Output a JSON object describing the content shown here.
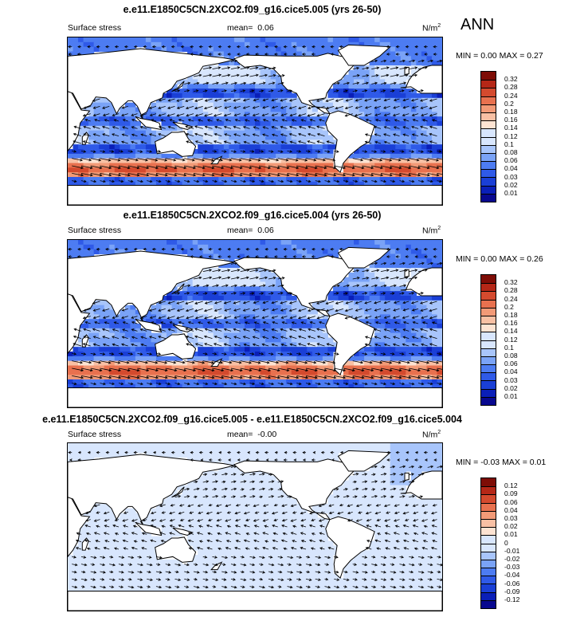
{
  "season": "ANN",
  "colors": {
    "land": "#ffffff",
    "coast": "#000000",
    "abs_scale": [
      "#08088f",
      "#0a1fb8",
      "#1a3fd6",
      "#2f5ae8",
      "#4d7cf2",
      "#7aa3f7",
      "#a8c5fb",
      "#d8e6fd",
      "#fde3d2",
      "#f8c0a4",
      "#f29a77",
      "#e8714f",
      "#d44a2e",
      "#b52717",
      "#7e0d06"
    ],
    "diff_scale": [
      "#08088f",
      "#0a1fb8",
      "#1a3fd6",
      "#2f5ae8",
      "#4d7cf2",
      "#7aa3f7",
      "#a8c5fb",
      "#d8e6fd",
      "#fde3d2",
      "#f8c0a4",
      "#f29a77",
      "#e8714f",
      "#d44a2e",
      "#b52717",
      "#7e0d06"
    ]
  },
  "panels": [
    {
      "title": "e.e11.E1850C5CN.2XCO2.f09_g16.cice5.005 (yrs 26-50)",
      "variable": "Surface stress",
      "mean_label": "mean=",
      "mean_value": "0.06",
      "units_base": "N/m",
      "units_exp": "2",
      "min_max": "MIN =  0.00 MAX =  0.27",
      "levels": [
        "0.32",
        "0.28",
        "0.24",
        "0.2",
        "0.18",
        "0.16",
        "0.14",
        "0.12",
        "0.1",
        "0.08",
        "0.06",
        "0.04",
        "0.03",
        "0.02",
        "0.01"
      ],
      "kind": "abs"
    },
    {
      "title": "e.e11.E1850C5CN.2XCO2.f09_g16.cice5.004 (yrs 26-50)",
      "variable": "Surface stress",
      "mean_label": "mean=",
      "mean_value": "0.06",
      "units_base": "N/m",
      "units_exp": "2",
      "min_max": "MIN =  0.00 MAX =  0.26",
      "levels": [
        "0.32",
        "0.28",
        "0.24",
        "0.2",
        "0.18",
        "0.16",
        "0.14",
        "0.12",
        "0.1",
        "0.08",
        "0.06",
        "0.04",
        "0.03",
        "0.02",
        "0.01"
      ],
      "kind": "abs"
    },
    {
      "title": "e.e11.E1850C5CN.2XCO2.f09_g16.cice5.005 - e.e11.E1850C5CN.2XCO2.f09_g16.cice5.004",
      "variable": "Surface stress",
      "mean_label": "mean=",
      "mean_value": "-0.00",
      "units_base": "N/m",
      "units_exp": "2",
      "min_max": "MIN = -0.03 MAX =  0.01",
      "levels": [
        "0.12",
        "0.09",
        "0.06",
        "0.04",
        "0.03",
        "0.02",
        "0.01",
        "0",
        "-0.01",
        "-0.02",
        "-0.03",
        "-0.04",
        "-0.06",
        "-0.09",
        "-0.12"
      ],
      "kind": "diff"
    }
  ]
}
